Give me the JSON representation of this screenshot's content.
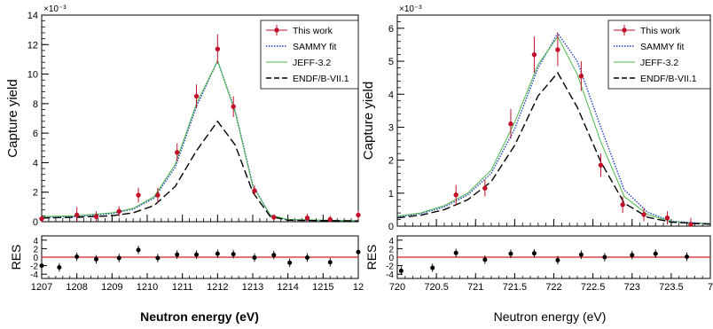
{
  "chart_data": [
    {
      "type": "scatter",
      "ylabel": "Capture yield",
      "multiplier": "×10⁻³",
      "xlabel": "Neutron energy  (eV)",
      "xlim": [
        1207,
        1216
      ],
      "ylim": [
        0,
        14
      ],
      "x_tick_labels": [
        "1207",
        "1208",
        "1209",
        "1210",
        "1211",
        "1212",
        "1213",
        "1214",
        "1215",
        "12"
      ],
      "y_tick_labels": [
        "0",
        "2",
        "4",
        "6",
        "8",
        "10",
        "12",
        "14"
      ],
      "legend": {
        "placement": "top-right",
        "entries": [
          "This work",
          "SAMMY fit",
          "JEFF-3.2",
          "ENDF/B-VII.1"
        ]
      },
      "series": [
        {
          "name": "This work",
          "style": "points",
          "color": "#c0102a",
          "x": [
            1207.0,
            1208.0,
            1208.55,
            1209.2,
            1209.75,
            1210.3,
            1210.85,
            1211.4,
            1212.0,
            1212.45,
            1213.05,
            1213.6,
            1214.55,
            1215.2,
            1216.0
          ],
          "y": [
            0.2,
            0.45,
            0.35,
            0.7,
            1.8,
            1.8,
            4.7,
            8.5,
            11.7,
            7.8,
            2.1,
            0.3,
            0.25,
            0.15,
            0.45
          ],
          "err": [
            0.2,
            0.55,
            0.35,
            0.35,
            0.5,
            0.5,
            0.6,
            0.8,
            1.0,
            0.7,
            0.35,
            0.2,
            0.3,
            0.25,
            0.3
          ]
        },
        {
          "name": "SAMMY fit",
          "style": "dotted",
          "color": "#1f3fbf",
          "x": [
            1207.0,
            1208.0,
            1209.0,
            1209.6,
            1210.2,
            1210.8,
            1211.4,
            1212.0,
            1212.5,
            1213.0,
            1213.5,
            1214.0,
            1215.0,
            1216.0
          ],
          "y": [
            0.3,
            0.35,
            0.55,
            0.85,
            1.6,
            3.7,
            7.8,
            10.9,
            7.5,
            2.5,
            0.4,
            0.12,
            0.08,
            0.05
          ]
        },
        {
          "name": "JEFF-3.2",
          "style": "solid",
          "color": "#4cb84c",
          "x": [
            1207.0,
            1208.0,
            1209.0,
            1209.6,
            1210.2,
            1210.8,
            1211.4,
            1212.0,
            1212.5,
            1213.0,
            1213.5,
            1214.0,
            1215.0,
            1216.0
          ],
          "y": [
            0.35,
            0.4,
            0.6,
            0.9,
            1.7,
            3.9,
            8.0,
            10.9,
            7.4,
            2.4,
            0.45,
            0.15,
            0.1,
            0.07
          ]
        },
        {
          "name": "ENDF/B-VII.1",
          "style": "dashed",
          "color": "#000000",
          "x": [
            1207.0,
            1208.0,
            1209.0,
            1209.6,
            1210.2,
            1210.8,
            1211.4,
            1212.0,
            1212.5,
            1213.0,
            1213.5,
            1214.0,
            1215.0,
            1216.0
          ],
          "y": [
            0.25,
            0.3,
            0.4,
            0.6,
            1.1,
            2.4,
            4.8,
            6.8,
            5.2,
            2.0,
            0.35,
            0.1,
            0.07,
            0.05
          ]
        }
      ],
      "residual_panel": {
        "ylabel": "RES",
        "ylim": [
          -5,
          5
        ],
        "y_tick_labels": [
          "-4",
          "-2",
          "0",
          "2",
          "4"
        ],
        "zero_line_color": "#d42020",
        "x": [
          1207.0,
          1207.5,
          1208.0,
          1208.55,
          1209.2,
          1209.75,
          1210.3,
          1210.85,
          1211.4,
          1212.0,
          1212.45,
          1213.05,
          1213.6,
          1214.05,
          1214.55,
          1215.2,
          1216.0
        ],
        "y": [
          -2.0,
          -2.4,
          0.1,
          -0.5,
          -0.2,
          1.7,
          -0.2,
          0.6,
          0.6,
          0.8,
          0.7,
          -0.1,
          0.5,
          -1.3,
          -0.1,
          -1.2,
          1.2
        ],
        "err": [
          1.0,
          1.0,
          1.0,
          1.0,
          1.0,
          1.0,
          1.0,
          1.0,
          1.0,
          1.0,
          1.0,
          1.0,
          1.0,
          1.0,
          1.0,
          1.0,
          1.0
        ]
      }
    },
    {
      "type": "scatter",
      "ylabel": "Capture yield",
      "multiplier": "×10⁻³",
      "xlabel": "Neutron energy  (eV)",
      "xlim": [
        720,
        724
      ],
      "ylim": [
        0,
        6.4
      ],
      "x_tick_labels": [
        "720",
        "720.5",
        "721",
        "721.5",
        "722",
        "722.5",
        "723",
        "723.5",
        "7"
      ],
      "y_tick_labels": [
        "0",
        "1",
        "2",
        "3",
        "4",
        "5",
        "6"
      ],
      "legend": {
        "placement": "top-right",
        "entries": [
          "This work",
          "SAMMY fit",
          "JEFF-3.2",
          "ENDF/B-VII.1"
        ]
      },
      "series": [
        {
          "name": "This work",
          "style": "points",
          "color": "#c0102a",
          "x": [
            720.75,
            721.12,
            721.45,
            721.75,
            722.05,
            722.35,
            722.6,
            722.88,
            723.15,
            723.45,
            723.75
          ],
          "y": [
            0.95,
            1.15,
            3.1,
            5.2,
            5.35,
            4.55,
            1.85,
            0.65,
            0.35,
            0.25,
            0.05
          ],
          "err": [
            0.3,
            0.25,
            0.45,
            0.55,
            0.5,
            0.45,
            0.35,
            0.25,
            0.2,
            0.2,
            0.2
          ]
        },
        {
          "name": "SAMMY fit",
          "style": "dotted",
          "color": "#1f3fbf",
          "x": [
            720.0,
            720.3,
            720.6,
            720.9,
            721.2,
            721.5,
            721.8,
            722.05,
            722.3,
            722.6,
            722.9,
            723.2,
            723.5,
            723.8,
            724.0
          ],
          "y": [
            0.28,
            0.38,
            0.58,
            0.95,
            1.6,
            2.95,
            4.8,
            5.85,
            5.0,
            3.0,
            1.1,
            0.42,
            0.15,
            0.1,
            0.08
          ]
        },
        {
          "name": "JEFF-3.2",
          "style": "solid",
          "color": "#4cb84c",
          "x": [
            720.0,
            720.3,
            720.6,
            720.9,
            721.2,
            721.5,
            721.8,
            722.05,
            722.3,
            722.6,
            722.9,
            723.2,
            723.5,
            723.8,
            724.0
          ],
          "y": [
            0.3,
            0.4,
            0.62,
            1.0,
            1.7,
            3.15,
            4.9,
            5.75,
            4.6,
            2.55,
            0.9,
            0.35,
            0.14,
            0.09,
            0.07
          ]
        },
        {
          "name": "ENDF/B-VII.1",
          "style": "dashed",
          "color": "#000000",
          "x": [
            720.0,
            720.3,
            720.6,
            720.9,
            721.2,
            721.5,
            721.8,
            722.05,
            722.3,
            722.6,
            722.9,
            723.2,
            723.5,
            723.8,
            724.0
          ],
          "y": [
            0.25,
            0.33,
            0.5,
            0.8,
            1.35,
            2.45,
            3.95,
            4.65,
            3.6,
            1.95,
            0.7,
            0.27,
            0.12,
            0.08,
            0.06
          ]
        }
      ],
      "residual_panel": {
        "ylabel": "RES",
        "ylim": [
          -5,
          5
        ],
        "y_tick_labels": [
          "-4",
          "-2",
          "0",
          "2",
          "4"
        ],
        "zero_line_color": "#d42020",
        "x": [
          720.05,
          720.45,
          720.75,
          721.12,
          721.45,
          721.75,
          722.05,
          722.35,
          722.65,
          723.0,
          723.3,
          723.7
        ],
        "y": [
          -3.2,
          -2.5,
          1.0,
          -0.6,
          0.8,
          0.9,
          -0.7,
          0.6,
          0.0,
          0.5,
          0.8,
          0.1
        ],
        "err": [
          1.0,
          1.0,
          1.0,
          1.0,
          1.0,
          1.0,
          1.0,
          1.0,
          1.0,
          1.0,
          1.0,
          1.0
        ]
      }
    }
  ]
}
